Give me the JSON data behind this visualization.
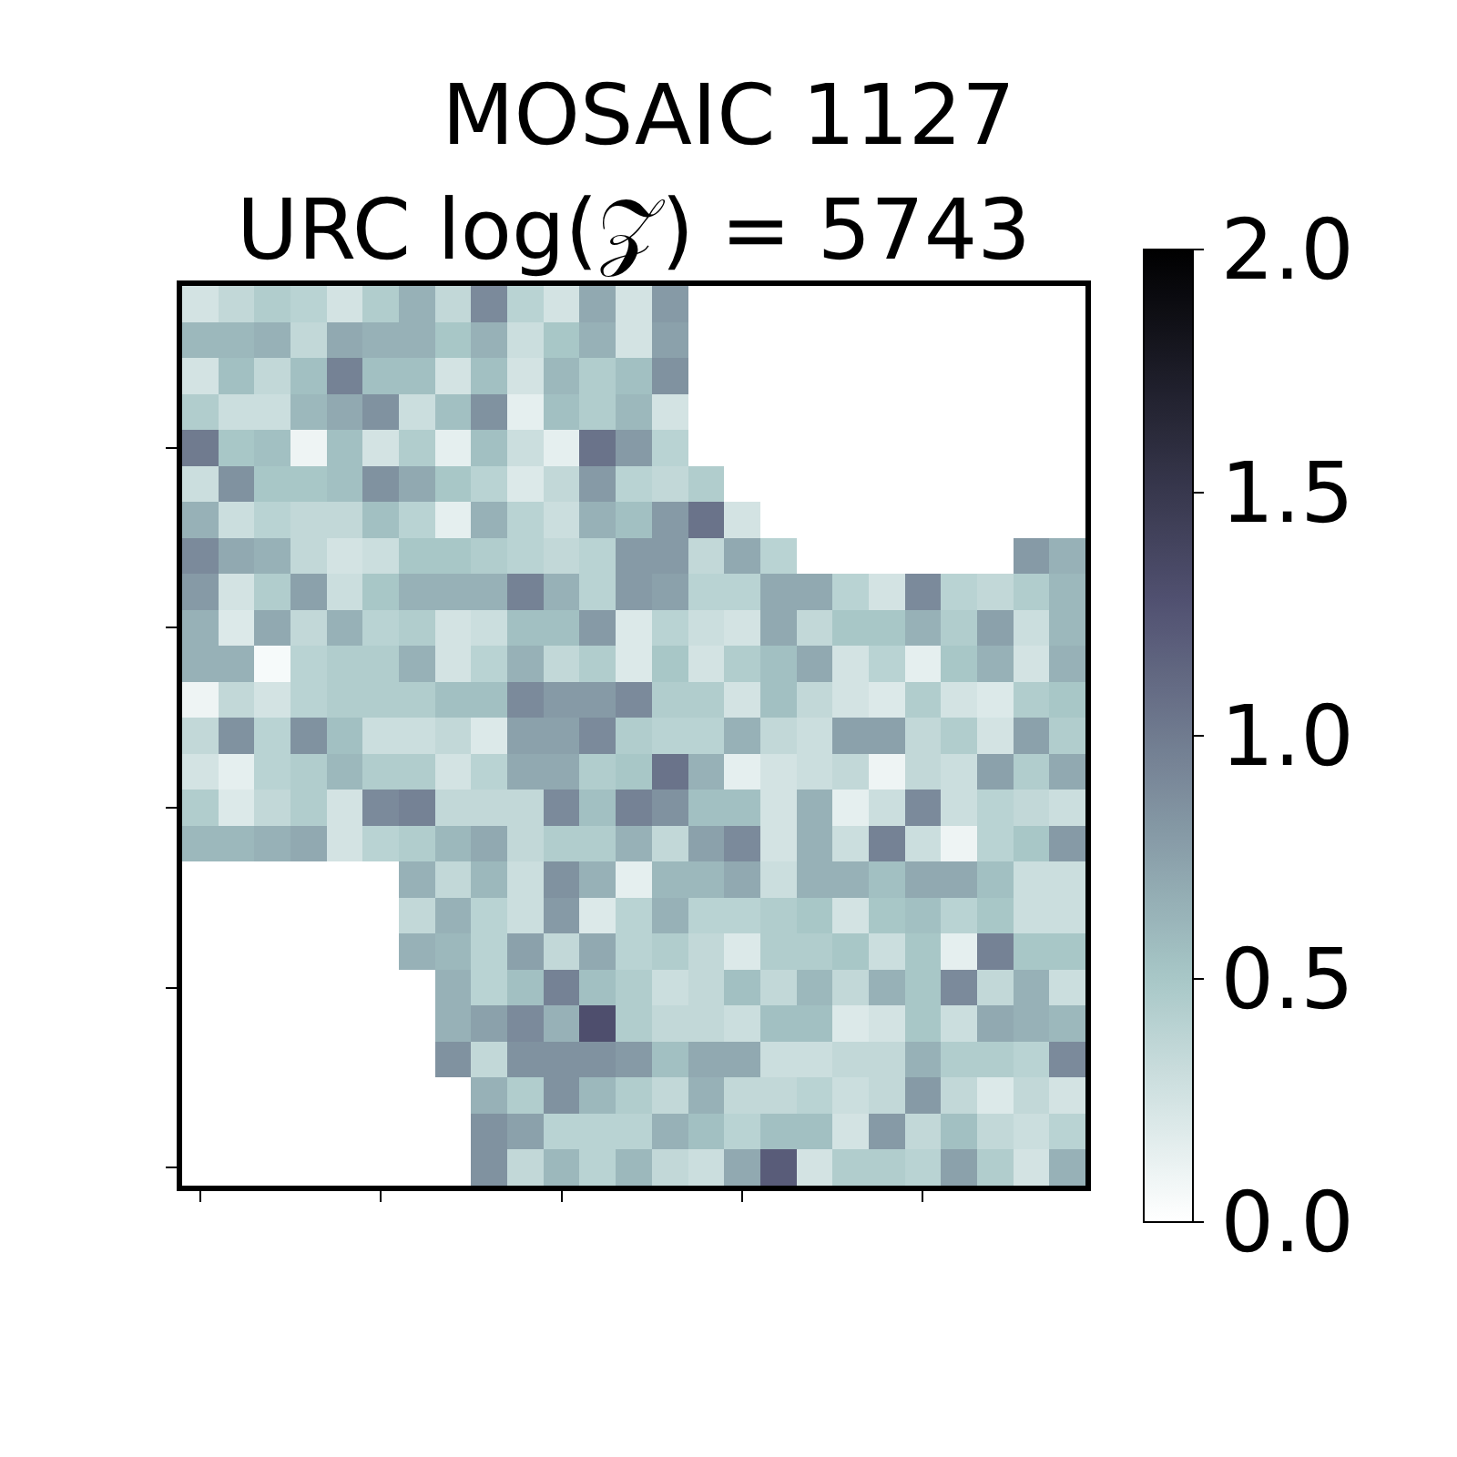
{
  "chart_data": {
    "type": "heatmap",
    "title": "MOSAIC 1127",
    "subtitle": "URC log(𝒵) = 5743",
    "categories": [
      null,
      null,
      null,
      null,
      null,
      null,
      null,
      null,
      null,
      null,
      null,
      null,
      null,
      null,
      null,
      null,
      null,
      null,
      null,
      null,
      null,
      null,
      null,
      null,
      null
    ],
    "y_categories": [
      null,
      null,
      null,
      null,
      null,
      null,
      null,
      null,
      null,
      null,
      null,
      null,
      null,
      null,
      null,
      null,
      null,
      null,
      null,
      null,
      null,
      null,
      null,
      null,
      null
    ],
    "tick_labels": false,
    "clim": [
      0,
      2
    ],
    "cticks": [
      {
        "value": 0,
        "label": "0.0"
      },
      {
        "value": 0.5,
        "label": "0.5"
      },
      {
        "value": 1,
        "label": "1.0"
      },
      {
        "value": 1.5,
        "label": "1.5"
      },
      {
        "value": 2,
        "label": "2.0"
      }
    ],
    "cells": [
      [
        0.25,
        0.35,
        0.45,
        0.4,
        0.25,
        0.45,
        0.65,
        0.35,
        0.9,
        0.4,
        0.25,
        0.7,
        0.25,
        0.8,
        null,
        null,
        null,
        null,
        null,
        null,
        null,
        null,
        null,
        null,
        null
      ],
      [
        0.6,
        0.6,
        0.65,
        0.35,
        0.7,
        0.65,
        0.65,
        0.5,
        0.65,
        0.3,
        0.5,
        0.65,
        0.25,
        0.75,
        null,
        null,
        null,
        null,
        null,
        null,
        null,
        null,
        null,
        null,
        null
      ],
      [
        0.25,
        0.55,
        0.35,
        0.55,
        0.95,
        0.55,
        0.55,
        0.25,
        0.55,
        0.25,
        0.6,
        0.45,
        0.55,
        0.85,
        null,
        null,
        null,
        null,
        null,
        null,
        null,
        null,
        null,
        null,
        null
      ],
      [
        0.45,
        0.3,
        0.3,
        0.6,
        0.7,
        0.85,
        0.3,
        0.55,
        0.85,
        0.15,
        0.55,
        0.45,
        0.6,
        0.25,
        null,
        null,
        null,
        null,
        null,
        null,
        null,
        null,
        null,
        null,
        null
      ],
      [
        1.0,
        0.5,
        0.55,
        0.1,
        0.55,
        0.25,
        0.45,
        0.15,
        0.55,
        0.3,
        0.15,
        1.05,
        0.8,
        0.4,
        null,
        null,
        null,
        null,
        null,
        null,
        null,
        null,
        null,
        null,
        null
      ],
      [
        0.3,
        0.85,
        0.5,
        0.5,
        0.55,
        0.85,
        0.7,
        0.5,
        0.4,
        0.2,
        0.35,
        0.8,
        0.4,
        0.35,
        0.45,
        null,
        null,
        null,
        null,
        null,
        null,
        null,
        null,
        null,
        null
      ],
      [
        0.65,
        0.3,
        0.4,
        0.35,
        0.35,
        0.55,
        0.4,
        0.15,
        0.65,
        0.4,
        0.3,
        0.65,
        0.55,
        0.8,
        1.05,
        0.25,
        null,
        null,
        null,
        null,
        null,
        null,
        null,
        null,
        null
      ],
      [
        0.9,
        0.7,
        0.65,
        0.35,
        0.25,
        0.3,
        0.5,
        0.5,
        0.45,
        0.4,
        0.35,
        0.4,
        0.8,
        0.8,
        0.35,
        0.7,
        0.4,
        null,
        null,
        null,
        null,
        null,
        null,
        0.8,
        0.65
      ],
      [
        0.8,
        0.25,
        0.45,
        0.75,
        0.3,
        0.5,
        0.65,
        0.65,
        0.65,
        0.95,
        0.65,
        0.4,
        0.8,
        0.75,
        0.4,
        0.4,
        0.7,
        0.7,
        0.4,
        0.25,
        0.9,
        0.4,
        0.35,
        0.45,
        0.6
      ],
      [
        0.65,
        0.2,
        0.7,
        0.35,
        0.65,
        0.4,
        0.45,
        0.25,
        0.3,
        0.55,
        0.55,
        0.8,
        0.2,
        0.4,
        0.3,
        0.25,
        0.7,
        0.35,
        0.5,
        0.5,
        0.65,
        0.45,
        0.75,
        0.3,
        0.6
      ],
      [
        0.65,
        0.65,
        0.05,
        0.4,
        0.45,
        0.45,
        0.65,
        0.25,
        0.4,
        0.65,
        0.35,
        0.45,
        0.2,
        0.5,
        0.25,
        0.45,
        0.55,
        0.7,
        0.25,
        0.4,
        0.15,
        0.5,
        0.65,
        0.25,
        0.65
      ],
      [
        0.1,
        0.35,
        0.25,
        0.4,
        0.45,
        0.45,
        0.45,
        0.55,
        0.55,
        0.9,
        0.8,
        0.8,
        0.9,
        0.45,
        0.45,
        0.25,
        0.55,
        0.35,
        0.25,
        0.2,
        0.45,
        0.25,
        0.2,
        0.45,
        0.5
      ],
      [
        0.35,
        0.85,
        0.4,
        0.85,
        0.55,
        0.3,
        0.3,
        0.35,
        0.2,
        0.75,
        0.75,
        0.9,
        0.45,
        0.4,
        0.4,
        0.65,
        0.35,
        0.3,
        0.75,
        0.75,
        0.35,
        0.45,
        0.25,
        0.75,
        0.45
      ],
      [
        0.25,
        0.15,
        0.4,
        0.45,
        0.6,
        0.45,
        0.45,
        0.25,
        0.4,
        0.7,
        0.7,
        0.45,
        0.5,
        1.05,
        0.65,
        0.15,
        0.25,
        0.3,
        0.35,
        0.1,
        0.35,
        0.3,
        0.75,
        0.45,
        0.7
      ],
      [
        0.45,
        0.2,
        0.35,
        0.45,
        0.25,
        0.9,
        0.95,
        0.35,
        0.35,
        0.35,
        0.9,
        0.55,
        0.95,
        0.85,
        0.55,
        0.55,
        0.25,
        0.65,
        0.15,
        0.3,
        0.9,
        0.3,
        0.4,
        0.35,
        0.3
      ],
      [
        0.6,
        0.6,
        0.65,
        0.7,
        0.25,
        0.4,
        0.45,
        0.6,
        0.7,
        0.35,
        0.45,
        0.45,
        0.65,
        0.35,
        0.75,
        0.9,
        0.25,
        0.65,
        0.3,
        0.95,
        0.3,
        0.1,
        0.4,
        0.5,
        0.8
      ],
      [
        null,
        null,
        null,
        null,
        null,
        null,
        0.65,
        0.35,
        0.6,
        0.3,
        0.85,
        0.65,
        0.15,
        0.6,
        0.6,
        0.7,
        0.3,
        0.65,
        0.65,
        0.55,
        0.7,
        0.7,
        0.55,
        0.3,
        0.3
      ],
      [
        null,
        null,
        null,
        null,
        null,
        null,
        0.35,
        0.65,
        0.4,
        0.3,
        0.8,
        0.2,
        0.4,
        0.65,
        0.4,
        0.4,
        0.45,
        0.5,
        0.25,
        0.5,
        0.55,
        0.4,
        0.5,
        0.3,
        0.3
      ],
      [
        null,
        null,
        null,
        null,
        null,
        null,
        0.65,
        0.6,
        0.4,
        0.75,
        0.35,
        0.7,
        0.4,
        0.45,
        0.35,
        0.2,
        0.45,
        0.45,
        0.5,
        0.3,
        0.5,
        0.15,
        0.95,
        0.5,
        0.5
      ],
      [
        null,
        null,
        null,
        null,
        null,
        null,
        null,
        0.65,
        0.4,
        0.55,
        0.95,
        0.55,
        0.45,
        0.3,
        0.35,
        0.55,
        0.35,
        0.6,
        0.35,
        0.65,
        0.5,
        0.9,
        0.35,
        0.65,
        0.3
      ],
      [
        null,
        null,
        null,
        null,
        null,
        null,
        null,
        0.65,
        0.75,
        0.9,
        0.65,
        1.3,
        0.45,
        0.35,
        0.35,
        0.3,
        0.55,
        0.55,
        0.2,
        0.25,
        0.5,
        0.3,
        0.7,
        0.65,
        0.6
      ],
      [
        null,
        null,
        null,
        null,
        null,
        null,
        null,
        0.85,
        0.35,
        0.85,
        0.85,
        0.85,
        0.8,
        0.55,
        0.7,
        0.7,
        0.3,
        0.3,
        0.35,
        0.35,
        0.65,
        0.45,
        0.45,
        0.4,
        0.9
      ],
      [
        null,
        null,
        null,
        null,
        null,
        null,
        null,
        null,
        0.65,
        0.45,
        0.85,
        0.6,
        0.45,
        0.35,
        0.65,
        0.35,
        0.35,
        0.4,
        0.3,
        0.35,
        0.8,
        0.35,
        0.2,
        0.35,
        0.25
      ],
      [
        null,
        null,
        null,
        null,
        null,
        null,
        null,
        null,
        0.85,
        0.75,
        0.4,
        0.4,
        0.4,
        0.65,
        0.55,
        0.4,
        0.55,
        0.55,
        0.25,
        0.8,
        0.35,
        0.55,
        0.35,
        0.3,
        0.4
      ],
      [
        null,
        null,
        null,
        null,
        null,
        null,
        null,
        null,
        0.85,
        0.35,
        0.6,
        0.4,
        0.6,
        0.35,
        0.3,
        0.7,
        1.2,
        0.25,
        0.45,
        0.45,
        0.4,
        0.75,
        0.45,
        0.25,
        0.65
      ]
    ]
  }
}
